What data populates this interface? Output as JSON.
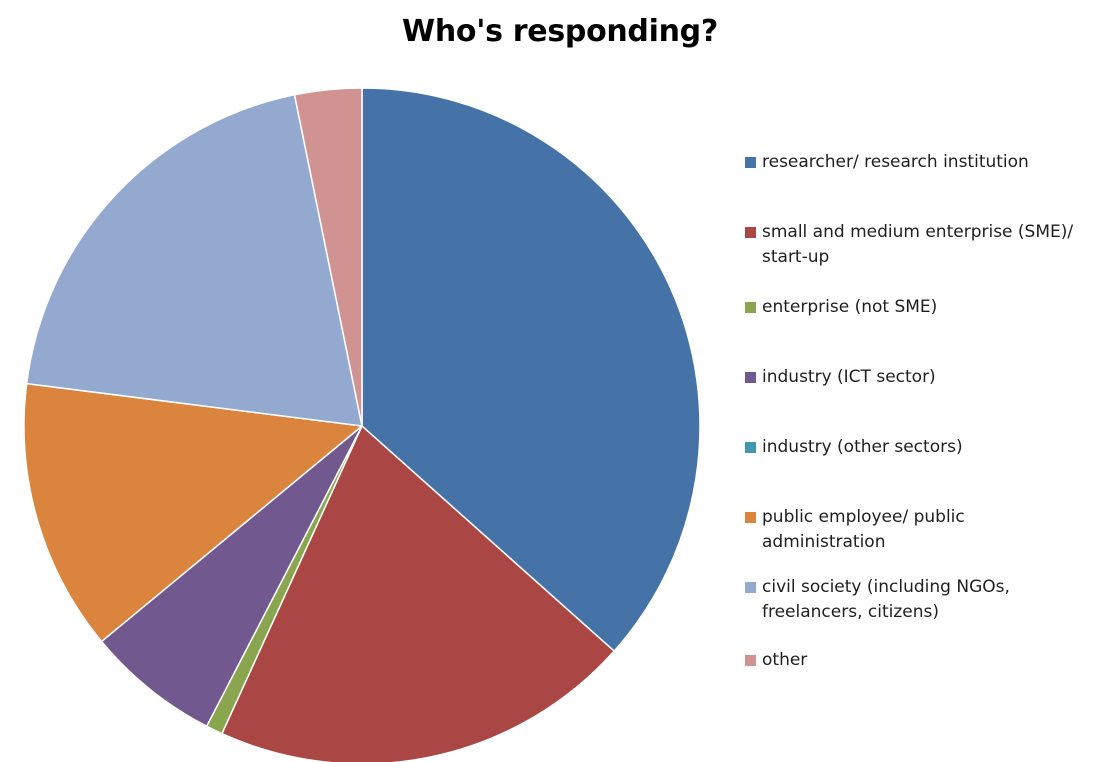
{
  "chart_data": {
    "type": "pie",
    "title": "Who's responding?",
    "legend_position": "right",
    "start_angle_deg": 0,
    "direction": "clockwise",
    "slices": [
      {
        "label": "researcher/ research institution",
        "value": 36.6,
        "color": "#4572A7"
      },
      {
        "label": "small and medium enterprise (SME)/ start-up",
        "value": 20.2,
        "color": "#AA4643"
      },
      {
        "label": "enterprise (not SME)",
        "value": 0.8,
        "color": "#89A54E"
      },
      {
        "label": "industry (ICT sector)",
        "value": 6.4,
        "color": "#71588F"
      },
      {
        "label": "industry (other sectors)",
        "value": 0.0,
        "color": "#4198AF"
      },
      {
        "label": "public employee/ public administration",
        "value": 13.0,
        "color": "#DB843D"
      },
      {
        "label": "civil society (including NGOs, freelancers, citizens)",
        "value": 19.8,
        "color": "#93A9CF"
      },
      {
        "label": "other",
        "value": 3.2,
        "color": "#D19392"
      }
    ]
  }
}
